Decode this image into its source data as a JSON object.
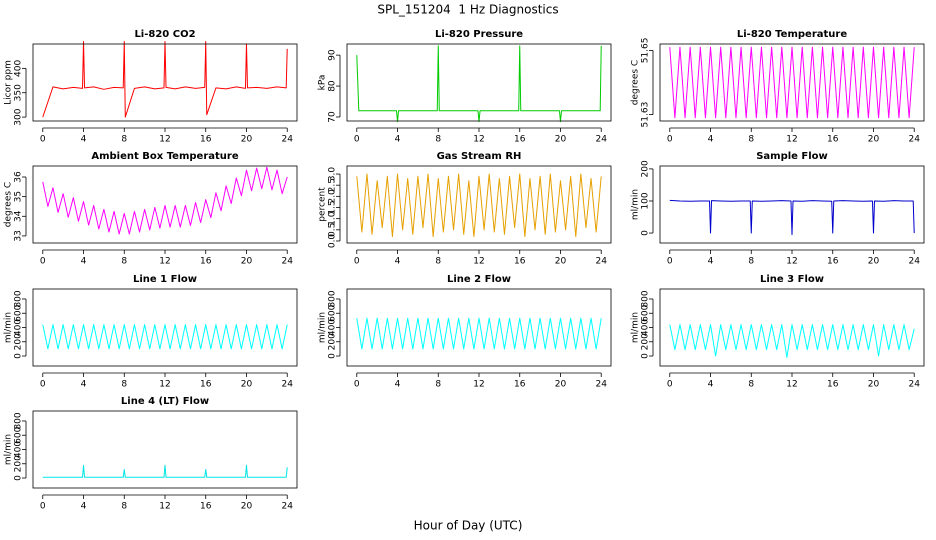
{
  "title": "SPL_151204  1 Hz Diagnostics",
  "xlabel": "Hour of Day (UTC)",
  "chart_data": [
    {
      "type": "line",
      "title": "Li-820 CO2",
      "ylabel": "Licor ppm",
      "x": [
        0,
        1,
        2,
        3,
        3.9,
        4,
        4.1,
        5,
        6,
        7,
        7.9,
        8,
        8.1,
        9,
        10,
        11,
        11.9,
        12,
        12.1,
        13,
        14,
        15,
        15.9,
        16,
        16.1,
        17,
        18,
        19,
        19.9,
        20,
        20.1,
        21,
        22,
        23,
        23.9,
        24
      ],
      "series": [
        {
          "color": "#ff0000",
          "values": [
            300,
            362,
            358,
            361,
            359,
            455,
            360,
            362,
            357,
            361,
            360,
            455,
            300,
            359,
            362,
            358,
            360,
            455,
            361,
            358,
            362,
            359,
            361,
            455,
            305,
            360,
            358,
            362,
            359,
            450,
            360,
            361,
            359,
            362,
            360,
            440
          ]
        }
      ],
      "xlim": [
        -0.96,
        24.96
      ],
      "xticks": [
        0,
        4,
        8,
        12,
        16,
        20,
        24
      ],
      "ylim": [
        292,
        450
      ],
      "yticks": [
        300,
        350,
        400
      ]
    },
    {
      "type": "line",
      "title": "Li-820 Pressure",
      "ylabel": "kPa",
      "x": [
        0,
        0.2,
        1,
        2,
        3,
        3.9,
        4,
        4.1,
        5,
        6,
        7,
        7.9,
        8,
        8.1,
        9,
        10,
        11,
        11.9,
        12,
        12.1,
        13,
        14,
        15,
        15.9,
        16,
        16.1,
        17,
        18,
        19,
        19.9,
        20,
        20.1,
        21,
        22,
        23,
        23.9,
        24
      ],
      "series": [
        {
          "color": "#00cc00",
          "values": [
            90,
            72,
            72,
            72,
            72,
            72,
            68.5,
            72,
            72,
            72,
            72,
            72,
            93,
            72,
            72,
            72,
            72,
            72,
            68.5,
            72,
            72,
            72,
            72,
            72,
            93,
            72,
            72,
            72,
            72,
            72,
            68.5,
            72,
            72,
            72,
            72,
            72,
            93
          ]
        }
      ],
      "xlim": [
        -0.96,
        24.96
      ],
      "xticks": [
        0,
        4,
        8,
        12,
        16,
        20,
        24
      ],
      "ylim": [
        68.7,
        93.6
      ],
      "yticks": [
        70,
        80,
        90
      ]
    },
    {
      "type": "line",
      "title": "Li-820 Temperature",
      "ylabel": "degrees C",
      "x": [
        0,
        0.5,
        1,
        1.5,
        2,
        2.5,
        3,
        3.5,
        4,
        4.5,
        5,
        5.5,
        6,
        6.5,
        7,
        7.5,
        8,
        8.5,
        9,
        9.5,
        10,
        10.5,
        11,
        11.5,
        12,
        12.5,
        13,
        13.5,
        14,
        14.5,
        15,
        15.5,
        16,
        16.5,
        17,
        17.5,
        18,
        18.5,
        19,
        19.5,
        20,
        20.5,
        21,
        21.5,
        22,
        22.5,
        23,
        23.5,
        24
      ],
      "series": [
        {
          "color": "#ff00ff",
          "values": [
            51.651,
            51.629,
            51.651,
            51.629,
            51.651,
            51.629,
            51.651,
            51.629,
            51.651,
            51.629,
            51.651,
            51.629,
            51.651,
            51.629,
            51.651,
            51.629,
            51.651,
            51.629,
            51.651,
            51.629,
            51.651,
            51.629,
            51.651,
            51.629,
            51.651,
            51.629,
            51.651,
            51.629,
            51.651,
            51.629,
            51.651,
            51.629,
            51.651,
            51.629,
            51.651,
            51.629,
            51.651,
            51.629,
            51.651,
            51.629,
            51.651,
            51.629,
            51.651,
            51.629,
            51.651,
            51.629,
            51.651,
            51.629,
            51.651
          ]
        }
      ],
      "xlim": [
        -0.96,
        24.96
      ],
      "xticks": [
        0,
        4,
        8,
        12,
        16,
        20,
        24
      ],
      "ylim": [
        51.628,
        51.652
      ],
      "yticks": [
        51.63,
        51.65
      ]
    },
    {
      "type": "line",
      "title": "Ambient Box Temperature",
      "ylabel": "degrees C",
      "x": [
        0,
        0.5,
        1,
        1.5,
        2,
        2.5,
        3,
        3.5,
        4,
        4.5,
        5,
        5.5,
        6,
        6.5,
        7,
        7.5,
        8,
        8.5,
        9,
        9.5,
        10,
        10.5,
        11,
        11.5,
        12,
        12.5,
        13,
        13.5,
        14,
        14.5,
        15,
        15.5,
        16,
        16.5,
        17,
        17.5,
        18,
        18.5,
        19,
        19.5,
        20,
        20.5,
        21,
        21.5,
        22,
        22.5,
        23,
        23.5,
        24
      ],
      "series": [
        {
          "color": "#ff00ff",
          "values": [
            35.75,
            34.5,
            35.45,
            34.2,
            35.15,
            33.95,
            34.95,
            33.75,
            34.75,
            33.55,
            34.55,
            33.35,
            34.35,
            33.2,
            34.25,
            33.1,
            34.15,
            33.1,
            34.25,
            33.2,
            34.35,
            33.3,
            34.45,
            33.4,
            34.55,
            33.45,
            34.55,
            33.45,
            34.55,
            33.53,
            34.7,
            33.68,
            34.85,
            33.93,
            35.2,
            34.28,
            35.55,
            34.65,
            35.95,
            35.05,
            36.35,
            35.3,
            36.45,
            35.4,
            36.5,
            35.35,
            36.35,
            35.15,
            36.0
          ]
        }
      ],
      "xlim": [
        -0.96,
        24.96
      ],
      "xticks": [
        0,
        4,
        8,
        12,
        16,
        20,
        24
      ],
      "ylim": [
        32.64,
        36.56
      ],
      "yticks": [
        33,
        34,
        35,
        36
      ]
    },
    {
      "type": "line",
      "title": "Gas Stream RH",
      "ylabel": "percent",
      "x": [
        0,
        0.5,
        1,
        1.5,
        2,
        2.5,
        3,
        3.5,
        4,
        4.5,
        5,
        5.5,
        6,
        6.5,
        7,
        7.5,
        8,
        8.5,
        9,
        9.5,
        10,
        10.5,
        11,
        11.5,
        12,
        12.5,
        13,
        13.5,
        14,
        14.5,
        15,
        15.5,
        16,
        16.5,
        17,
        17.5,
        18,
        18.5,
        19,
        19.5,
        20,
        20.5,
        21,
        21.5,
        22,
        22.5,
        23,
        23.5,
        24
      ],
      "series": [
        {
          "color": "#e6a000",
          "values": [
            2.9,
            0.4,
            3.0,
            0.3,
            2.7,
            0.6,
            2.9,
            0.2,
            3.0,
            0.5,
            2.8,
            0.3,
            2.9,
            0.6,
            3.0,
            0.2,
            2.8,
            0.4,
            2.9,
            0.5,
            3.0,
            0.3,
            2.7,
            0.2,
            2.9,
            0.5,
            3.0,
            0.4,
            2.8,
            0.3,
            2.9,
            0.6,
            3.0,
            0.2,
            2.8,
            0.5,
            2.9,
            0.3,
            3.0,
            0.4,
            2.7,
            0.5,
            2.9,
            0.2,
            3.0,
            0.6,
            2.8,
            0.4,
            2.9
          ]
        }
      ],
      "xlim": [
        -0.96,
        24.96
      ],
      "xticks": [
        0,
        4,
        8,
        12,
        16,
        20,
        24
      ],
      "ylim": [
        -0.09,
        3.36
      ],
      "yticks": [
        {
          "value": 0,
          "label": "0.0"
        },
        0.5,
        {
          "value": 1,
          "label": "1.0"
        },
        1.5,
        {
          "value": 2,
          "label": "2.0"
        },
        2.5,
        {
          "value": 3,
          "label": "3.0"
        }
      ]
    },
    {
      "type": "line",
      "title": "Sample Flow",
      "ylabel": "ml/min",
      "x": [
        0,
        1,
        2,
        3,
        3.9,
        4,
        4.1,
        5,
        6,
        7,
        7.9,
        8,
        8.1,
        9,
        10,
        11,
        11.9,
        12,
        12.1,
        13,
        14,
        15,
        15.9,
        16,
        16.1,
        17,
        18,
        19,
        19.9,
        20,
        20.1,
        21,
        22,
        23,
        23.9,
        24
      ],
      "series": [
        {
          "color": "#0000cc",
          "values": [
            102,
            100,
            99,
            100,
            100,
            0,
            101,
            100,
            99,
            100,
            100,
            0,
            100,
            99,
            100,
            101,
            100,
            -5,
            100,
            99,
            101,
            100,
            99,
            0,
            100,
            101,
            100,
            99,
            100,
            0,
            100,
            99,
            101,
            100,
            100,
            0
          ]
        }
      ],
      "xlim": [
        -0.96,
        24.96
      ],
      "xticks": [
        0,
        4,
        8,
        12,
        16,
        20,
        24
      ],
      "ylim": [
        -31,
        209
      ],
      "yticks": [
        0,
        100,
        200
      ]
    },
    {
      "type": "line",
      "title": "Line 1 Flow",
      "ylabel": "ml/min",
      "x": [
        0,
        0.5,
        1,
        1.5,
        2,
        2.5,
        3,
        3.5,
        4,
        4.5,
        5,
        5.5,
        6,
        6.5,
        7,
        7.5,
        8,
        8.5,
        9,
        9.5,
        10,
        10.5,
        11,
        11.5,
        12,
        12.5,
        13,
        13.5,
        14,
        14.5,
        15,
        15.5,
        16,
        16.5,
        17,
        17.5,
        18,
        18.5,
        19,
        19.5,
        20,
        20.5,
        21,
        21.5,
        22,
        22.5,
        23,
        23.5,
        24
      ],
      "series": [
        {
          "color": "#00ffff",
          "values": [
            440,
            100,
            440,
            100,
            440,
            100,
            440,
            100,
            440,
            100,
            440,
            100,
            440,
            100,
            440,
            100,
            440,
            100,
            440,
            100,
            440,
            100,
            440,
            100,
            440,
            100,
            440,
            100,
            440,
            100,
            440,
            100,
            440,
            100,
            440,
            100,
            440,
            100,
            440,
            100,
            440,
            100,
            440,
            100,
            440,
            100,
            440,
            100,
            440
          ]
        }
      ],
      "xlim": [
        -0.96,
        24.96
      ],
      "xticks": [
        0,
        4,
        8,
        12,
        16,
        20,
        24
      ],
      "ylim": [
        -140,
        940
      ],
      "yticks": [
        0,
        200,
        400,
        600,
        800
      ]
    },
    {
      "type": "line",
      "title": "Line 2 Flow",
      "ylabel": "ml/min",
      "x": [
        0,
        0.5,
        1,
        1.5,
        2,
        2.5,
        3,
        3.5,
        4,
        4.5,
        5,
        5.5,
        6,
        6.5,
        7,
        7.5,
        8,
        8.5,
        9,
        9.5,
        10,
        10.5,
        11,
        11.5,
        12,
        12.5,
        13,
        13.5,
        14,
        14.5,
        15,
        15.5,
        16,
        16.5,
        17,
        17.5,
        18,
        18.5,
        19,
        19.5,
        20,
        20.5,
        21,
        21.5,
        22,
        22.5,
        23,
        23.5,
        24
      ],
      "series": [
        {
          "color": "#00ffff",
          "values": [
            530,
            100,
            530,
            100,
            530,
            100,
            530,
            100,
            530,
            100,
            530,
            100,
            530,
            100,
            530,
            100,
            530,
            100,
            530,
            100,
            530,
            100,
            530,
            100,
            530,
            100,
            530,
            100,
            530,
            100,
            530,
            100,
            530,
            100,
            530,
            100,
            530,
            100,
            530,
            100,
            530,
            100,
            530,
            100,
            530,
            100,
            530,
            100,
            530
          ]
        }
      ],
      "xlim": [
        -0.96,
        24.96
      ],
      "xticks": [
        0,
        4,
        8,
        12,
        16,
        20,
        24
      ],
      "ylim": [
        -140,
        940
      ],
      "yticks": [
        0,
        200,
        400,
        600,
        800
      ]
    },
    {
      "type": "line",
      "title": "Line 3 Flow",
      "ylabel": "ml/min",
      "x": [
        0,
        0.5,
        1,
        1.5,
        2,
        2.5,
        3,
        3.5,
        4,
        4.5,
        5,
        5.5,
        6,
        6.5,
        7,
        7.5,
        8,
        8.5,
        9,
        9.5,
        10,
        10.5,
        11,
        11.5,
        12,
        12.5,
        13,
        13.5,
        14,
        14.5,
        15,
        15.5,
        16,
        16.5,
        17,
        17.5,
        18,
        18.5,
        19,
        19.5,
        20,
        20.5,
        21,
        21.5,
        22,
        22.5,
        23,
        23.5,
        24
      ],
      "series": [
        {
          "color": "#00ffff",
          "values": [
            440,
            90,
            440,
            90,
            440,
            90,
            440,
            90,
            440,
            0,
            440,
            90,
            440,
            90,
            440,
            90,
            440,
            90,
            440,
            90,
            440,
            90,
            440,
            -20,
            440,
            90,
            440,
            90,
            440,
            90,
            440,
            90,
            440,
            90,
            440,
            90,
            440,
            90,
            440,
            90,
            440,
            0,
            440,
            90,
            440,
            90,
            440,
            90,
            380
          ]
        }
      ],
      "xlim": [
        -0.96,
        24.96
      ],
      "xticks": [
        0,
        4,
        8,
        12,
        16,
        20,
        24
      ],
      "ylim": [
        -140,
        940
      ],
      "yticks": [
        0,
        200,
        400,
        600,
        800
      ]
    },
    {
      "type": "line",
      "title": "Line 4 (LT) Flow",
      "ylabel": "ml/min",
      "x": [
        0,
        1,
        2,
        3,
        3.9,
        4,
        4.1,
        5,
        6,
        7,
        7.9,
        8,
        8.1,
        9,
        10,
        11,
        11.9,
        12,
        12.1,
        13,
        14,
        15,
        15.9,
        16,
        16.1,
        17,
        18,
        19,
        19.9,
        20,
        20.1,
        21,
        22,
        23,
        23.9,
        24
      ],
      "series": [
        {
          "color": "#00e5e5",
          "values": [
            10,
            10,
            10,
            10,
            10,
            180,
            10,
            10,
            10,
            10,
            10,
            120,
            10,
            10,
            10,
            10,
            10,
            180,
            10,
            10,
            10,
            10,
            10,
            120,
            10,
            10,
            10,
            10,
            10,
            180,
            10,
            10,
            10,
            10,
            10,
            150
          ]
        }
      ],
      "xlim": [
        -0.96,
        24.96
      ],
      "xticks": [
        0,
        4,
        8,
        12,
        16,
        20,
        24
      ],
      "ylim": [
        -140,
        940
      ],
      "yticks": [
        0,
        200,
        400,
        600,
        800
      ]
    }
  ]
}
